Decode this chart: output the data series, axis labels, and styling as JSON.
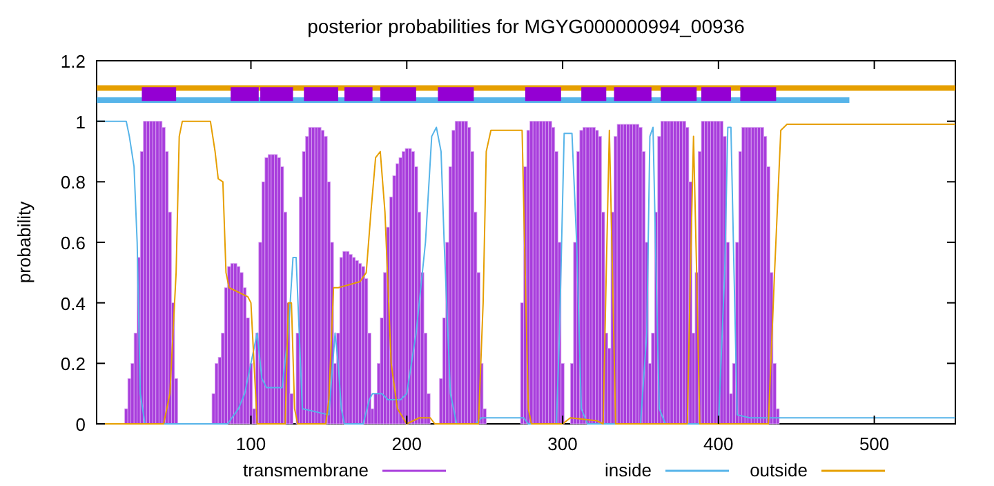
{
  "chart_data": {
    "type": "line",
    "title": "posterior probabilities for MGYG000000994_00936",
    "ylabel": "probability",
    "xlim": [
      1,
      552
    ],
    "xticks": [
      100,
      200,
      300,
      400,
      500
    ],
    "ylim": [
      0,
      1.2
    ],
    "yticks": [
      0,
      0.2,
      0.4,
      0.6,
      0.8,
      1,
      1.2
    ],
    "legend": "bottom",
    "series": [
      {
        "name": "transmembrane",
        "type": "bar",
        "color": "#a83ddc",
        "x": [
          20,
          22,
          24,
          26,
          28,
          30,
          32,
          34,
          36,
          38,
          40,
          42,
          44,
          46,
          48,
          50,
          52,
          76,
          78,
          80,
          82,
          84,
          86,
          88,
          90,
          92,
          94,
          96,
          98,
          100,
          102,
          104,
          106,
          108,
          110,
          112,
          114,
          116,
          118,
          120,
          122,
          124,
          126,
          130,
          132,
          134,
          136,
          138,
          140,
          142,
          144,
          146,
          148,
          150,
          152,
          154,
          156,
          158,
          160,
          162,
          164,
          166,
          168,
          170,
          172,
          174,
          176,
          178,
          180,
          182,
          184,
          186,
          188,
          190,
          192,
          194,
          196,
          198,
          200,
          202,
          204,
          206,
          208,
          210,
          212,
          214,
          222,
          224,
          226,
          228,
          230,
          232,
          234,
          236,
          238,
          240,
          242,
          244,
          246,
          248,
          250,
          274,
          276,
          278,
          280,
          282,
          284,
          286,
          288,
          290,
          292,
          294,
          296,
          298,
          300,
          306,
          308,
          310,
          312,
          314,
          316,
          318,
          320,
          322,
          324,
          326,
          328,
          330,
          332,
          334,
          336,
          338,
          340,
          342,
          344,
          346,
          348,
          350,
          352,
          354,
          356,
          358,
          360,
          362,
          364,
          366,
          368,
          370,
          372,
          374,
          376,
          378,
          380,
          382,
          384,
          386,
          388,
          390,
          392,
          394,
          396,
          398,
          400,
          402,
          404,
          406,
          408,
          410,
          412,
          414,
          416,
          418,
          420,
          422,
          424,
          426,
          428,
          430,
          432,
          434,
          436,
          438
        ],
        "values": [
          0.05,
          0.15,
          0.2,
          0.3,
          0.55,
          0.9,
          1,
          1,
          1,
          1,
          1,
          1,
          0.98,
          0.9,
          0.7,
          0.4,
          0.15,
          0.1,
          0.2,
          0.22,
          0.3,
          0.45,
          0.52,
          0.53,
          0.53,
          0.52,
          0.5,
          0.45,
          0.35,
          0.2,
          0.05,
          0.3,
          0.6,
          0.8,
          0.88,
          0.89,
          0.89,
          0.89,
          0.88,
          0.85,
          0.7,
          0.4,
          0.1,
          0.3,
          0.75,
          0.9,
          0.95,
          0.98,
          0.98,
          0.98,
          0.98,
          0.97,
          0.95,
          0.8,
          0.6,
          0.2,
          0.3,
          0.55,
          0.57,
          0.57,
          0.56,
          0.55,
          0.54,
          0.53,
          0.52,
          0.48,
          0.3,
          0.05,
          0.1,
          0.2,
          0.35,
          0.5,
          0.65,
          0.75,
          0.82,
          0.86,
          0.88,
          0.9,
          0.91,
          0.91,
          0.9,
          0.85,
          0.7,
          0.5,
          0.3,
          0.1,
          0.15,
          0.35,
          0.6,
          0.85,
          0.97,
          1,
          1,
          1,
          1,
          0.98,
          0.9,
          0.7,
          0.5,
          0.2,
          0.05,
          0.4,
          0.85,
          0.97,
          1,
          1,
          1,
          1,
          1,
          1,
          1,
          0.98,
          0.9,
          0.6,
          0.2,
          0.2,
          0.6,
          0.9,
          0.97,
          0.98,
          0.98,
          0.98,
          0.98,
          0.97,
          0.95,
          0.7,
          0.3,
          0.25,
          0.7,
          0.95,
          0.99,
          0.99,
          0.99,
          0.99,
          0.99,
          0.99,
          0.99,
          0.98,
          0.9,
          0.6,
          0.2,
          0.3,
          0.7,
          0.95,
          1,
          1,
          1,
          1,
          1,
          1,
          1,
          1,
          0.98,
          0.8,
          0.3,
          0.5,
          0.9,
          1,
          1,
          1,
          1,
          1,
          1,
          1,
          0.95,
          0.6,
          0.1,
          0.2,
          0.6,
          0.9,
          0.98,
          0.98,
          0.98,
          0.98,
          0.98,
          0.98,
          0.98,
          0.95,
          0.85,
          0.5,
          0.2,
          0.05
        ]
      },
      {
        "name": "inside",
        "color": "#56b4e9",
        "x": [
          1,
          20,
          22,
          25,
          27,
          29,
          32,
          85,
          92,
          96,
          100,
          104,
          107,
          110,
          120,
          124,
          127,
          129,
          131,
          133,
          150,
          154,
          156,
          158,
          160,
          172,
          176,
          178,
          184,
          188,
          196,
          200,
          206,
          212,
          216,
          219,
          222,
          224,
          228,
          232,
          244,
          248,
          275,
          278,
          296,
          298,
          301,
          306,
          309,
          312,
          316,
          350,
          354,
          356,
          358,
          360,
          362,
          366,
          400,
          404,
          406,
          408,
          410,
          412,
          420,
          552
        ],
        "values": [
          1,
          1,
          0.95,
          0.85,
          0.6,
          0.1,
          0,
          0,
          0.05,
          0.1,
          0.2,
          0.3,
          0.15,
          0.12,
          0.12,
          0.3,
          0.55,
          0.55,
          0.3,
          0.05,
          0.03,
          0.3,
          0.2,
          0.05,
          0,
          0,
          0.08,
          0.1,
          0.1,
          0.08,
          0.08,
          0.1,
          0.3,
          0.6,
          0.95,
          0.98,
          0.9,
          0.6,
          0.1,
          0,
          0,
          0.02,
          0.02,
          0,
          0,
          0.3,
          0.96,
          0.96,
          0.6,
          0.05,
          0,
          0,
          0.3,
          0.95,
          0.98,
          0.5,
          0.05,
          0,
          0,
          0.5,
          0.98,
          0.98,
          0.5,
          0.03,
          0.02,
          0.02
        ]
      },
      {
        "name": "outside",
        "color": "#e69f00",
        "x": [
          1,
          44,
          48,
          52,
          54,
          56,
          74,
          77,
          79,
          82,
          84,
          86,
          98,
          100,
          102,
          104,
          122,
          124,
          126,
          128,
          130,
          148,
          150,
          153,
          156,
          170,
          174,
          177,
          180,
          183,
          186,
          190,
          194,
          200,
          208,
          215,
          218,
          246,
          249,
          251,
          254,
          274,
          276,
          278,
          280,
          300,
          305,
          322,
          326,
          328,
          330,
          332,
          334,
          380,
          382,
          384,
          386,
          388,
          432,
          436,
          440,
          444,
          552
        ],
        "values": [
          0,
          0,
          0.1,
          0.5,
          0.95,
          1,
          1,
          0.9,
          0.81,
          0.8,
          0.5,
          0.45,
          0.42,
          0.4,
          0.2,
          0,
          0,
          0.4,
          0.4,
          0.05,
          0,
          0,
          0.08,
          0.45,
          0.45,
          0.47,
          0.5,
          0.7,
          0.88,
          0.9,
          0.7,
          0.2,
          0.05,
          0,
          0.02,
          0.02,
          0,
          0,
          0.4,
          0.9,
          0.97,
          0.97,
          0.5,
          0.05,
          0,
          0,
          0.02,
          0.01,
          0,
          0.5,
          0.97,
          0.5,
          0,
          0,
          0.5,
          0.95,
          0.5,
          0,
          0,
          0.5,
          0.97,
          0.99,
          0.99
        ]
      },
      {
        "type": "step",
        "color": "#e69f00",
        "x": [
          1,
          552
        ],
        "values": [
          1.11,
          1.11
        ]
      },
      {
        "type": "step",
        "color": "#56b4e9",
        "x": [
          1,
          484
        ],
        "values": [
          1.07,
          1.07
        ]
      },
      {
        "type": "step",
        "color": "#9400d3",
        "x": [
          30,
          52,
          53,
          87,
          105,
          105.5,
          106,
          127,
          128,
          134,
          156,
          157,
          160,
          178,
          179,
          183,
          206,
          207,
          220,
          243,
          244,
          276,
          299,
          300,
          312,
          328,
          329,
          333,
          357,
          358,
          363,
          386,
          387,
          389,
          408,
          409,
          414,
          437
        ],
        "values": [
          1.09,
          1.09,
          null,
          1.09,
          1.09,
          null,
          1.09,
          1.09,
          null,
          1.09,
          1.09,
          null,
          1.09,
          1.09,
          null,
          1.09,
          1.09,
          null,
          1.09,
          1.09,
          null,
          1.09,
          1.09,
          null,
          1.09,
          1.09,
          null,
          1.09,
          1.09,
          null,
          1.09,
          1.09,
          null,
          1.09,
          1.09,
          null,
          1.09,
          1.09
        ]
      }
    ]
  }
}
